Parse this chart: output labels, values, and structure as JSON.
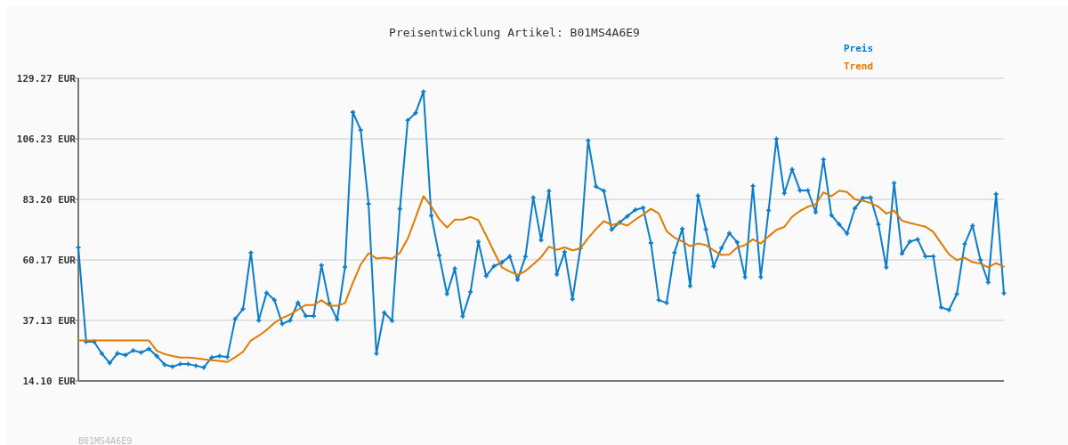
{
  "chart_data": {
    "type": "line",
    "title": "Preisentwicklung Artikel: B01MS4A6E9",
    "categories": [
      null,
      null,
      null,
      null,
      null,
      null,
      null,
      null,
      null,
      null,
      null,
      null,
      null,
      null,
      null,
      null,
      null,
      null,
      null,
      null,
      null,
      null,
      null,
      null,
      null,
      null,
      null,
      null,
      null,
      null,
      null,
      null,
      null,
      null,
      null,
      null,
      null,
      null,
      null,
      null,
      null,
      null,
      null,
      null,
      null,
      null,
      null,
      null,
      null,
      null,
      null,
      null,
      null,
      null,
      null,
      null,
      null,
      null,
      null,
      null,
      null,
      null,
      null,
      null,
      null,
      null,
      null,
      null,
      null,
      null,
      null,
      null,
      null,
      null,
      null,
      null,
      null,
      null,
      null,
      null,
      null,
      null,
      null,
      null,
      null,
      null,
      null,
      null,
      null,
      null,
      null,
      null,
      null,
      null,
      null,
      null,
      null,
      null,
      null,
      null,
      null,
      null,
      null,
      null,
      null,
      null,
      null,
      null,
      null,
      null,
      null,
      null,
      null,
      null,
      null,
      null,
      null,
      null,
      null
    ],
    "series": [
      {
        "name": "Preis",
        "color": "#0a7ccc",
        "marker": "cross",
        "values": [
          64.9,
          29.0,
          29.0,
          24.5,
          20.9,
          24.6,
          23.9,
          25.7,
          24.9,
          26.3,
          23.6,
          20.3,
          19.5,
          20.5,
          20.5,
          19.9,
          19.2,
          23.0,
          23.6,
          23.2,
          37.7,
          41.5,
          62.9,
          37.1,
          47.6,
          44.9,
          35.8,
          37.1,
          43.9,
          38.8,
          38.8,
          58.1,
          43.6,
          37.5,
          57.5,
          116.4,
          109.6,
          81.5,
          24.5,
          40.1,
          37.0,
          79.6,
          113.3,
          116.1,
          124.2,
          77.0,
          61.9,
          47.2,
          56.9,
          38.7,
          48.0,
          67.1,
          54.0,
          57.8,
          59.2,
          61.5,
          52.6,
          61.4,
          83.9,
          67.7,
          86.4,
          54.6,
          63.2,
          45.2,
          64.5,
          105.6,
          88.1,
          86.4,
          71.7,
          74.4,
          76.8,
          79.2,
          80.0,
          66.6,
          44.9,
          43.8,
          62.9,
          72.0,
          50.2,
          84.6,
          71.8,
          57.7,
          64.7,
          70.3,
          66.9,
          53.6,
          88.3,
          53.6,
          79.0,
          106.2,
          85.5,
          94.6,
          86.6,
          86.6,
          78.3,
          98.4,
          77.2,
          73.7,
          70.2,
          79.8,
          83.7,
          83.9,
          73.7,
          57.3,
          89.4,
          62.5,
          67.1,
          68.0,
          61.5,
          61.5,
          42.1,
          41.1,
          47.2,
          66.2,
          73.2,
          60.2,
          51.6,
          85.2,
          47.5
        ]
      },
      {
        "name": "Trend",
        "color": "#e07b00",
        "marker": "none",
        "values": [
          29.5,
          29.5,
          29.5,
          29.5,
          29.5,
          29.5,
          29.5,
          29.5,
          29.5,
          29.5,
          25.6,
          24.3,
          23.6,
          23.0,
          23.0,
          22.7,
          22.3,
          22.0,
          21.7,
          21.3,
          23.1,
          25.2,
          29.5,
          31.3,
          33.5,
          36.2,
          38.0,
          39.4,
          41.2,
          43.0,
          43.0,
          44.8,
          42.7,
          42.7,
          43.7,
          51.4,
          58.4,
          62.7,
          60.7,
          61.0,
          60.6,
          62.9,
          68.3,
          76.2,
          84.4,
          80.5,
          75.7,
          72.5,
          75.5,
          75.5,
          76.5,
          75.3,
          69.4,
          63.2,
          57.3,
          55.7,
          54.5,
          55.9,
          58.5,
          61.2,
          65.2,
          64.0,
          64.9,
          63.8,
          64.5,
          68.5,
          71.9,
          74.9,
          73.4,
          74.2,
          73.2,
          75.5,
          77.4,
          79.6,
          77.8,
          71.1,
          68.6,
          67.2,
          65.4,
          66.4,
          65.8,
          63.8,
          62.0,
          62.2,
          64.9,
          65.8,
          68.0,
          66.4,
          69.1,
          71.6,
          72.7,
          76.6,
          78.8,
          80.4,
          81.3,
          85.9,
          84.4,
          86.5,
          86.0,
          83.2,
          82.7,
          81.8,
          80.4,
          77.8,
          78.9,
          75.1,
          74.2,
          73.5,
          72.8,
          70.8,
          66.5,
          62.3,
          60.1,
          61.0,
          59.3,
          58.8,
          57.3,
          58.9,
          57.6
        ]
      }
    ],
    "ylim": [
      14.1,
      129.27
    ],
    "yticks": [
      {
        "value": 14.1,
        "label": "14.10 EUR"
      },
      {
        "value": 37.13,
        "label": "37.13 EUR"
      },
      {
        "value": 60.17,
        "label": "60.17 EUR"
      },
      {
        "value": 83.2,
        "label": "83.20 EUR"
      },
      {
        "value": 106.23,
        "label": "106.23 EUR"
      },
      {
        "value": 129.27,
        "label": "129.27 EUR"
      }
    ],
    "grid": "y",
    "legend": "top right",
    "line_style": "solid",
    "annotations": [
      "B01MS4A6E9"
    ]
  }
}
